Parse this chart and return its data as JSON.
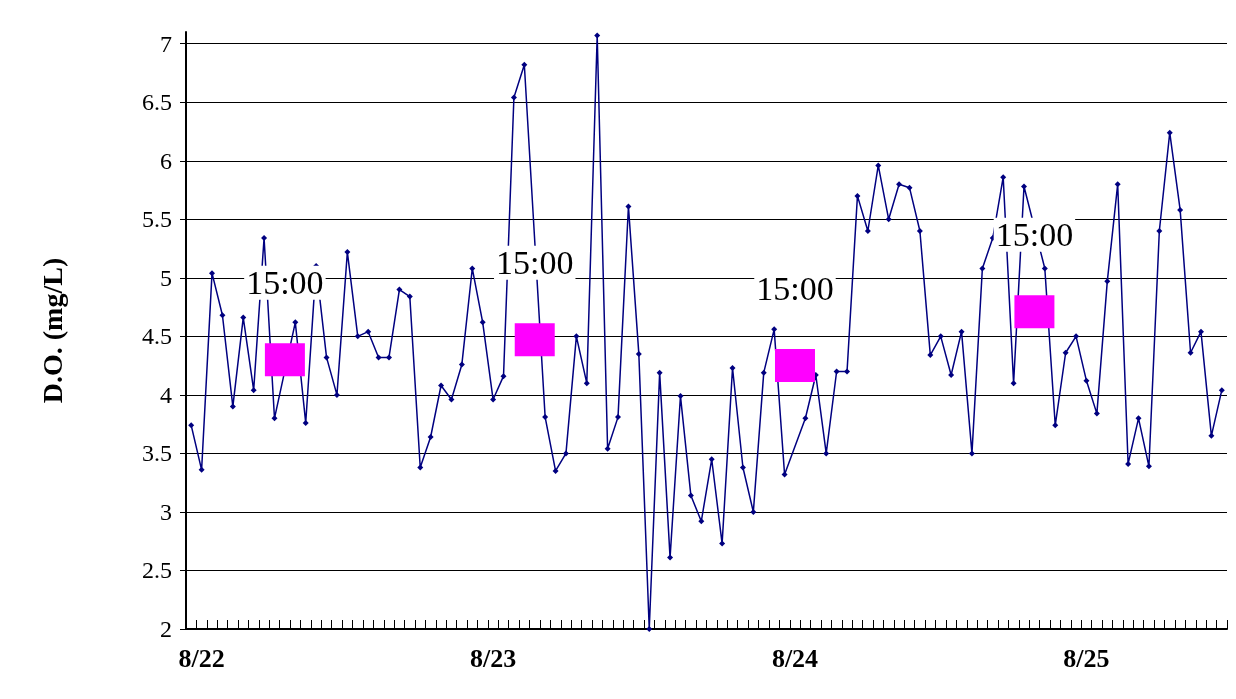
{
  "chart_data": {
    "type": "line",
    "ylabel": "D.O. (mg/L)",
    "categories": [
      null,
      "8/22",
      null,
      null,
      null,
      null,
      null,
      null,
      null,
      null,
      null,
      null,
      null,
      null,
      null,
      null,
      null,
      null,
      null,
      null,
      null,
      null,
      null,
      null,
      null,
      null,
      null,
      null,
      null,
      "8/23",
      null,
      null,
      null,
      null,
      null,
      null,
      null,
      null,
      null,
      null,
      null,
      null,
      null,
      null,
      null,
      null,
      null,
      null,
      null,
      null,
      null,
      null,
      null,
      null,
      null,
      null,
      null,
      null,
      "8/24",
      null,
      null,
      null,
      null,
      null,
      null,
      null,
      null,
      null,
      null,
      null,
      null,
      null,
      null,
      null,
      null,
      null,
      null,
      null,
      null,
      null,
      null,
      null,
      null,
      null,
      null,
      null,
      "8/25",
      null,
      null,
      null,
      null,
      null,
      null,
      null,
      null,
      null,
      null,
      null,
      null,
      null
    ],
    "series": [
      {
        "color": "#000080",
        "marker": "diamond",
        "values": [
          3.74,
          3.36,
          5.04,
          4.68,
          3.9,
          4.66,
          4.04,
          5.34,
          3.8,
          null,
          4.62,
          3.76,
          5.1,
          4.32,
          4.0,
          5.22,
          4.5,
          4.54,
          4.32,
          4.32,
          4.9,
          4.84,
          3.38,
          3.64,
          4.08,
          3.96,
          4.26,
          5.08,
          4.62,
          3.96,
          4.16,
          6.54,
          6.82,
          null,
          3.81,
          3.35,
          3.5,
          4.5,
          4.1,
          7.07,
          3.54,
          3.81,
          5.61,
          4.35,
          2.0,
          4.19,
          2.61,
          3.99,
          3.14,
          2.92,
          3.45,
          2.73,
          4.23,
          3.38,
          3.0,
          4.19,
          4.56,
          3.32,
          null,
          3.8,
          4.17,
          3.5,
          4.2,
          4.2,
          5.7,
          5.4,
          5.96,
          5.5,
          5.8,
          5.77,
          5.4,
          4.34,
          4.5,
          4.17,
          4.54,
          3.5,
          5.08,
          5.34,
          5.86,
          4.1,
          5.78,
          null,
          5.08,
          3.74,
          4.36,
          4.5,
          4.12,
          3.84,
          4.97,
          5.8,
          3.41,
          3.8,
          3.39,
          5.4,
          6.24,
          5.58,
          4.36,
          4.54,
          3.65,
          4.04
        ]
      },
      {
        "type": "scatter",
        "color": "#ff00ff",
        "marker": "square",
        "values": [
          null,
          null,
          null,
          null,
          null,
          null,
          null,
          null,
          null,
          4.3,
          null,
          null,
          null,
          null,
          null,
          null,
          null,
          null,
          null,
          null,
          null,
          null,
          null,
          null,
          null,
          null,
          null,
          null,
          null,
          null,
          null,
          null,
          null,
          4.47,
          null,
          null,
          null,
          null,
          null,
          null,
          null,
          null,
          null,
          null,
          null,
          null,
          null,
          null,
          null,
          null,
          null,
          null,
          null,
          null,
          null,
          null,
          null,
          null,
          4.25,
          null,
          null,
          null,
          null,
          null,
          null,
          null,
          null,
          null,
          null,
          null,
          null,
          null,
          null,
          null,
          null,
          null,
          null,
          null,
          null,
          null,
          null,
          4.71,
          null,
          null,
          null,
          null,
          null,
          null,
          null,
          null,
          null,
          null,
          null,
          null,
          null,
          null,
          null,
          null,
          null,
          null
        ]
      }
    ],
    "annotations": [
      "15:00",
      "15:00",
      "15:00",
      "15:00"
    ],
    "ylim": [
      2,
      7.1
    ],
    "yticks": [
      2,
      2.5,
      3,
      3.5,
      4,
      4.5,
      5,
      5.5,
      6,
      6.5,
      7
    ],
    "grid": "y"
  }
}
